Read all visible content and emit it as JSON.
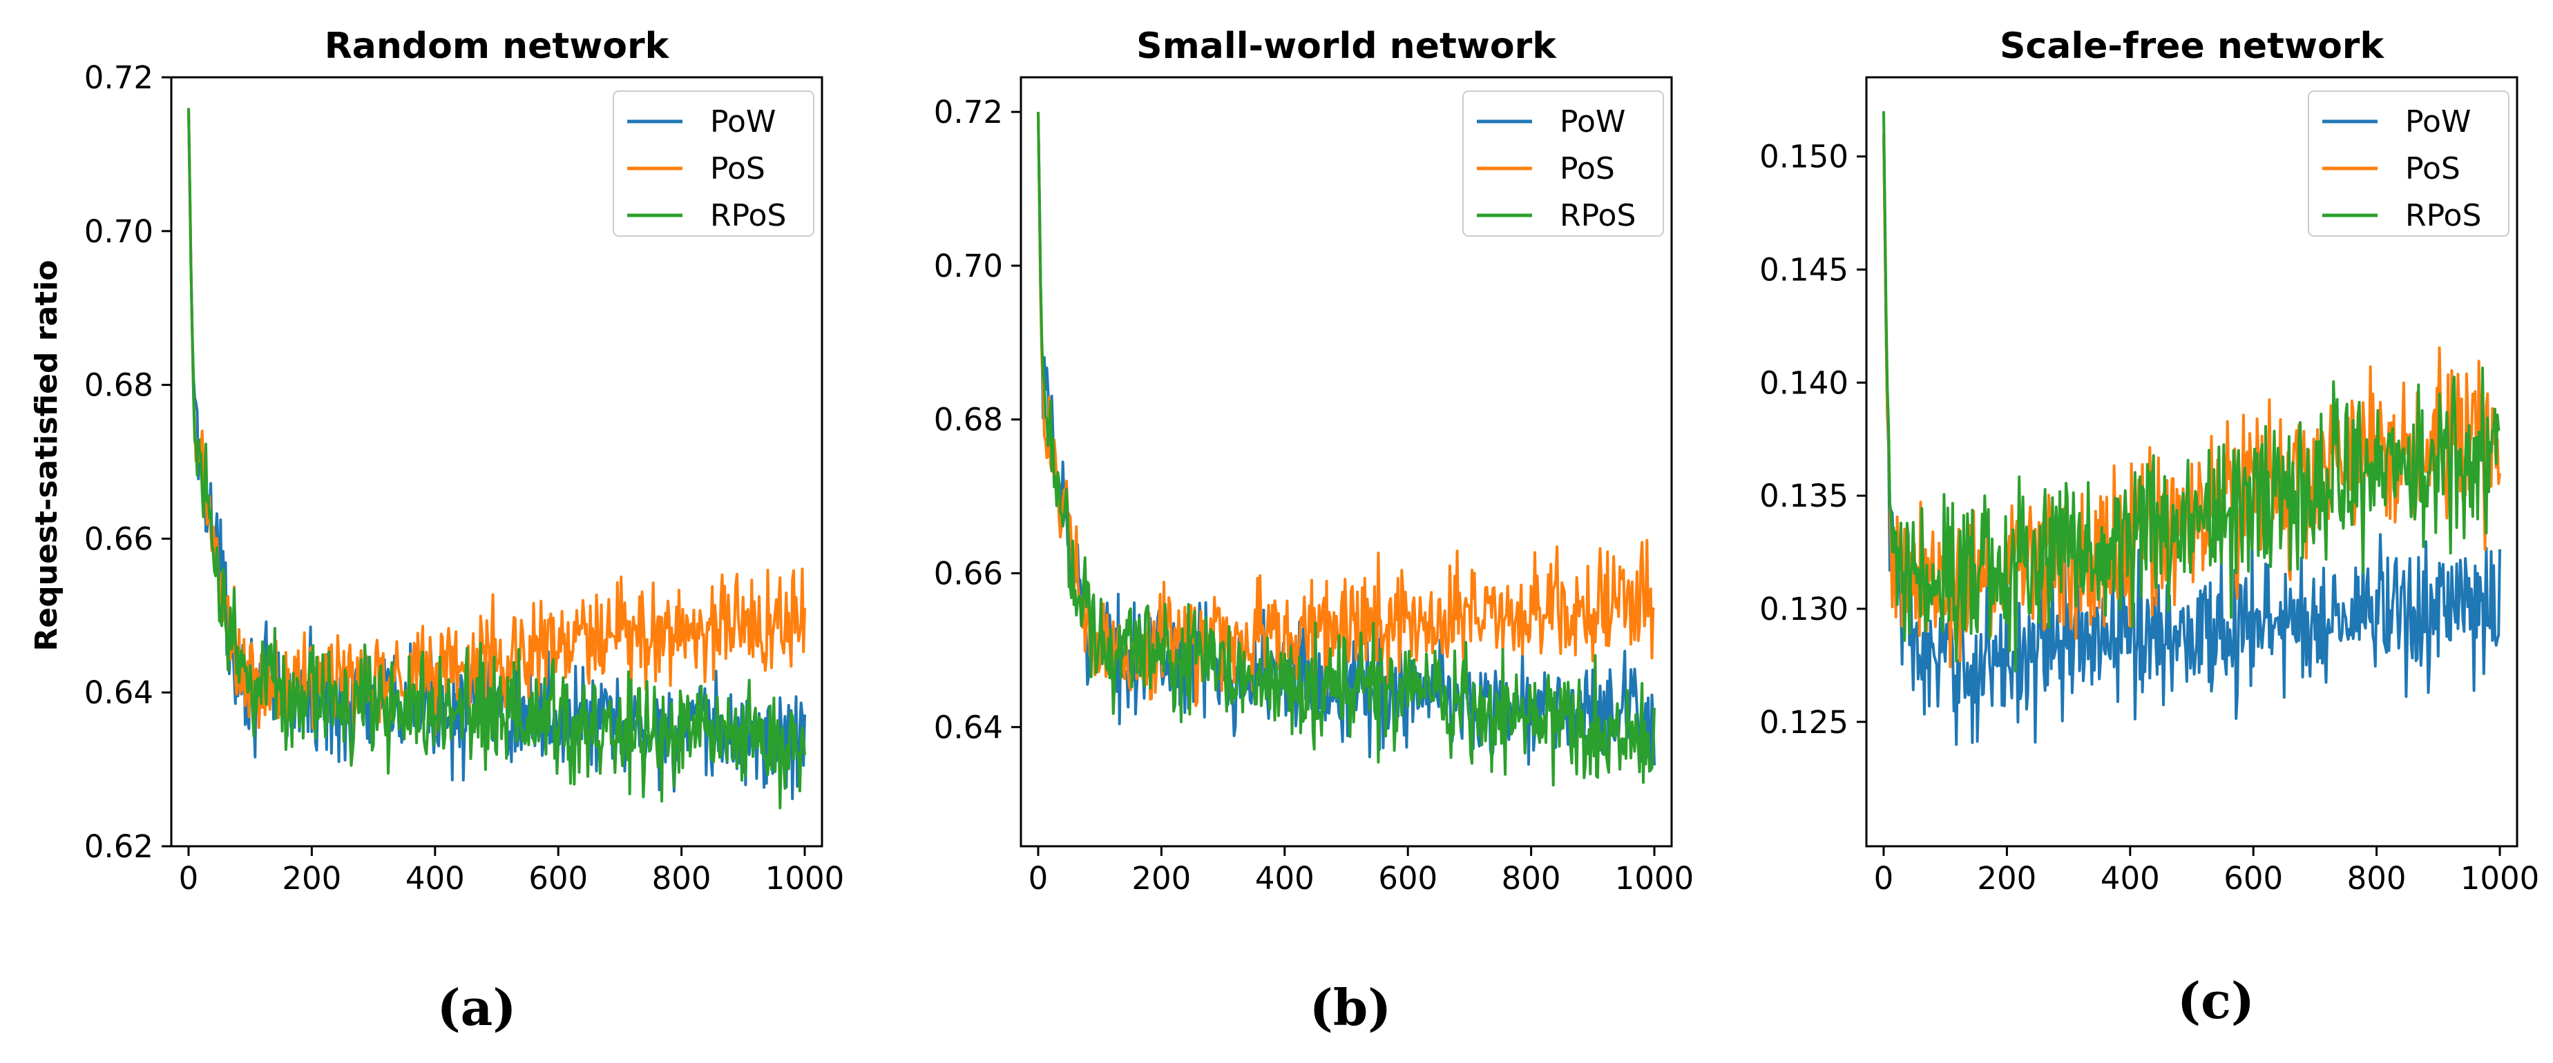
{
  "colors": {
    "PoW": "#1f77b4",
    "PoS": "#ff7f0e",
    "RPoS": "#2ca02c"
  },
  "ylabel": "Request-satisfied ratio",
  "chart_data": [
    {
      "type": "line",
      "title": "Random network",
      "panel_label": "(a)",
      "xlabel": "",
      "ylabel": "Request-satisfied ratio",
      "xlim": [
        -28,
        1028
      ],
      "ylim": [
        0.62,
        0.72
      ],
      "x_ticks": [
        0,
        200,
        400,
        600,
        800,
        1000
      ],
      "y_ticks": [
        0.62,
        0.64,
        0.66,
        0.68,
        0.7,
        0.72
      ],
      "y_tick_labels": [
        "0.62",
        "0.64",
        "0.66",
        "0.68",
        "0.70",
        "0.72"
      ],
      "legend": [
        "PoW",
        "PoS",
        "RPoS"
      ],
      "legend_position": "top-right",
      "series": [
        {
          "name": "PoW",
          "x": [
            0,
            5,
            10,
            25,
            50,
            75,
            100,
            150,
            200,
            300,
            400,
            500,
            600,
            700,
            800,
            900,
            1000
          ],
          "values": [
            0.716,
            0.69,
            0.675,
            0.669,
            0.655,
            0.646,
            0.641,
            0.6395,
            0.639,
            0.6385,
            0.638,
            0.6375,
            0.6365,
            0.6355,
            0.635,
            0.634,
            0.6335
          ],
          "noise": 0.0055
        },
        {
          "name": "PoS",
          "x": [
            0,
            5,
            10,
            25,
            50,
            75,
            100,
            150,
            200,
            300,
            400,
            500,
            600,
            700,
            800,
            900,
            1000
          ],
          "values": [
            0.716,
            0.69,
            0.673,
            0.668,
            0.654,
            0.645,
            0.64,
            0.6405,
            0.6415,
            0.642,
            0.643,
            0.6445,
            0.646,
            0.647,
            0.648,
            0.649,
            0.6495
          ],
          "noise": 0.0055
        },
        {
          "name": "RPoS",
          "x": [
            0,
            5,
            10,
            25,
            50,
            75,
            100,
            150,
            200,
            300,
            400,
            500,
            600,
            700,
            800,
            900,
            1000
          ],
          "values": [
            0.716,
            0.69,
            0.674,
            0.669,
            0.655,
            0.646,
            0.641,
            0.6395,
            0.639,
            0.6385,
            0.6375,
            0.637,
            0.636,
            0.635,
            0.6345,
            0.634,
            0.6325
          ],
          "noise": 0.0055
        }
      ]
    },
    {
      "type": "line",
      "title": "Small-world network",
      "panel_label": "(b)",
      "xlabel": "",
      "ylabel": "",
      "xlim": [
        -28,
        1028
      ],
      "ylim": [
        0.6245,
        0.7245
      ],
      "x_ticks": [
        0,
        200,
        400,
        600,
        800,
        1000
      ],
      "y_ticks": [
        0.64,
        0.66,
        0.68,
        0.7,
        0.72
      ],
      "y_tick_labels": [
        "0.64",
        "0.66",
        "0.68",
        "0.70",
        "0.72"
      ],
      "legend": [
        "PoW",
        "PoS",
        "RPoS"
      ],
      "legend_position": "top-right",
      "series": [
        {
          "name": "PoW",
          "x": [
            0,
            5,
            10,
            25,
            50,
            75,
            100,
            150,
            200,
            300,
            400,
            500,
            600,
            700,
            800,
            900,
            1000
          ],
          "values": [
            0.72,
            0.692,
            0.681,
            0.676,
            0.664,
            0.655,
            0.65,
            0.6495,
            0.649,
            0.648,
            0.6465,
            0.6455,
            0.6445,
            0.6435,
            0.6425,
            0.6415,
            0.6405
          ],
          "noise": 0.0055
        },
        {
          "name": "PoS",
          "x": [
            0,
            5,
            10,
            25,
            50,
            75,
            100,
            150,
            200,
            300,
            400,
            500,
            600,
            700,
            800,
            900,
            1000
          ],
          "values": [
            0.72,
            0.69,
            0.68,
            0.675,
            0.663,
            0.654,
            0.6495,
            0.6495,
            0.6505,
            0.6515,
            0.652,
            0.653,
            0.654,
            0.6545,
            0.655,
            0.6555,
            0.656
          ],
          "noise": 0.0055
        },
        {
          "name": "RPoS",
          "x": [
            0,
            5,
            10,
            25,
            50,
            75,
            100,
            150,
            200,
            300,
            400,
            500,
            600,
            700,
            800,
            900,
            1000
          ],
          "values": [
            0.72,
            0.692,
            0.682,
            0.677,
            0.664,
            0.655,
            0.6505,
            0.65,
            0.649,
            0.6475,
            0.646,
            0.645,
            0.6435,
            0.642,
            0.641,
            0.6395,
            0.6385
          ],
          "noise": 0.0055
        }
      ]
    },
    {
      "type": "line",
      "title": "Scale-free network",
      "panel_label": "(c)",
      "xlabel": "",
      "ylabel": "",
      "xlim": [
        -28,
        1028
      ],
      "ylim": [
        0.1195,
        0.1535
      ],
      "x_ticks": [
        0,
        200,
        400,
        600,
        800,
        1000
      ],
      "y_ticks": [
        0.125,
        0.13,
        0.135,
        0.14,
        0.145,
        0.15
      ],
      "y_tick_labels": [
        "0.125",
        "0.130",
        "0.135",
        "0.140",
        "0.145",
        "0.150"
      ],
      "legend": [
        "PoW",
        "PoS",
        "RPoS"
      ],
      "legend_position": "top-right",
      "series": [
        {
          "name": "PoW",
          "x": [
            0,
            5,
            10,
            25,
            50,
            75,
            100,
            150,
            200,
            300,
            400,
            500,
            600,
            700,
            800,
            900,
            1000
          ],
          "values": [
            0.151,
            0.14,
            0.133,
            0.131,
            0.1285,
            0.1275,
            0.1272,
            0.1275,
            0.128,
            0.1285,
            0.1288,
            0.129,
            0.1292,
            0.1295,
            0.1298,
            0.1298,
            0.13
          ],
          "noise": 0.0024
        },
        {
          "name": "PoS",
          "x": [
            0,
            5,
            10,
            25,
            50,
            75,
            100,
            150,
            200,
            300,
            400,
            500,
            600,
            700,
            800,
            900,
            1000
          ],
          "values": [
            0.151,
            0.14,
            0.134,
            0.132,
            0.1305,
            0.1305,
            0.131,
            0.1315,
            0.132,
            0.1325,
            0.133,
            0.134,
            0.135,
            0.136,
            0.1365,
            0.137,
            0.1375
          ],
          "noise": 0.0028
        },
        {
          "name": "RPoS",
          "x": [
            0,
            5,
            10,
            25,
            50,
            75,
            100,
            150,
            200,
            300,
            400,
            500,
            600,
            700,
            800,
            900,
            1000
          ],
          "values": [
            0.152,
            0.141,
            0.135,
            0.1325,
            0.131,
            0.131,
            0.1312,
            0.1315,
            0.132,
            0.1325,
            0.133,
            0.1335,
            0.1345,
            0.1355,
            0.136,
            0.1365,
            0.137
          ],
          "noise": 0.0028
        }
      ]
    }
  ]
}
